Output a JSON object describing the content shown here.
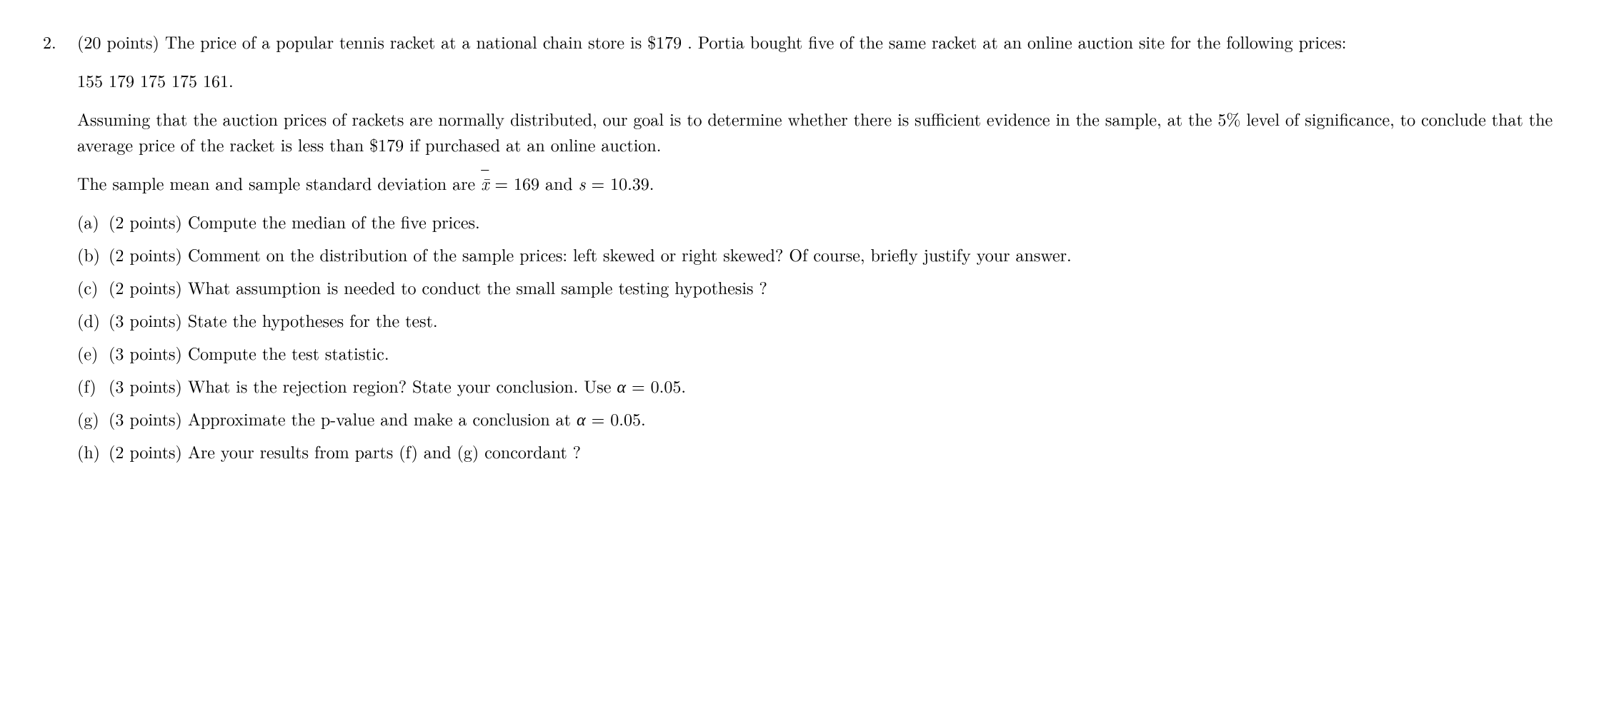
{
  "problem": {
    "number": "2.",
    "points_label": "(20 points)",
    "intro_text_1": "The price of a popular tennis racket at a national chain store is $179 . Portia bought five of the same racket at an online auction site for the following prices:",
    "data_values": "155 179 175 175 161.",
    "intro_text_2": "Assuming that the auction prices of rackets are normally distributed, our goal is to determine whether there is sufficient evidence in the sample, at the 5% level of significance, to conclude that the average price of the racket is less than $179 if purchased at an online auction.",
    "stats_prefix": "The sample mean and sample standard deviation are ",
    "xbar_symbol": "x̄",
    "stats_mid1": " = 169 and ",
    "s_symbol": "s",
    "stats_mid2": " = 10.39.",
    "subparts": {
      "a": {
        "label": "(a)",
        "points": "(2 points)",
        "text": "Compute the median of the five prices."
      },
      "b": {
        "label": "(b)",
        "points": "(2 points)",
        "text": "Comment on the distribution of the sample prices: left skewed or right skewed? Of course, briefly justify your answer."
      },
      "c": {
        "label": "(c)",
        "points": "(2 points)",
        "text": "What assumption is needed to conduct the small sample testing hypothesis ?"
      },
      "d": {
        "label": "(d)",
        "points": "(3 points)",
        "text": "State the hypotheses for the test."
      },
      "e": {
        "label": "(e)",
        "points": "(3 points)",
        "text": "Compute the test statistic."
      },
      "f": {
        "label": "(f)",
        "points": "(3 points)",
        "text_prefix": "What is the rejection region? State your conclusion. Use ",
        "alpha_symbol": "α",
        "text_suffix": " = 0.05."
      },
      "g": {
        "label": "(g)",
        "points": "(3 points)",
        "text_prefix": "Approximate the p-value and make a conclusion at ",
        "alpha_symbol": "α",
        "text_suffix": " = 0.05."
      },
      "h": {
        "label": "(h)",
        "points": "(2 points)",
        "text": "Are your results from parts (f) and (g) concordant ?"
      }
    }
  }
}
